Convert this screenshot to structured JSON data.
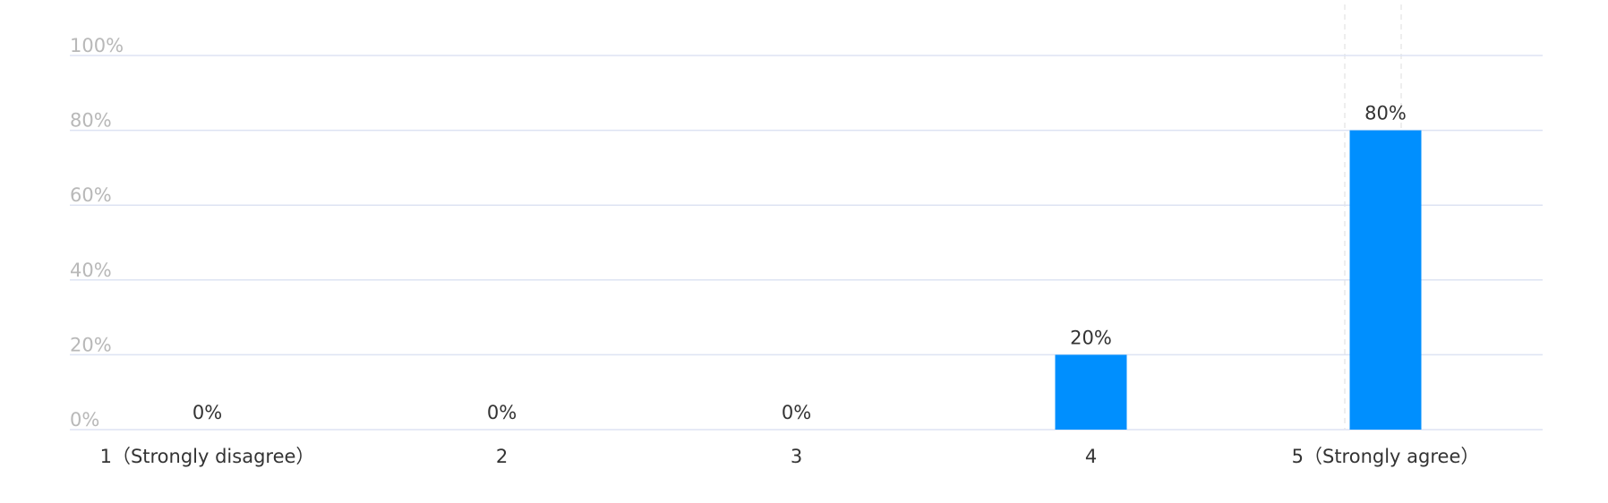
{
  "chart_data": {
    "type": "bar",
    "categories": [
      "1（Strongly disagree）",
      "2",
      "3",
      "4",
      "5（Strongly agree）"
    ],
    "values": [
      0,
      0,
      0,
      20,
      80
    ],
    "value_labels": [
      "0%",
      "0%",
      "0%",
      "20%",
      "80%"
    ],
    "color": "#008ffe",
    "ylim": [
      0,
      100
    ],
    "yticks": [
      {
        "value": 0,
        "label": "0%"
      },
      {
        "value": 20,
        "label": "20%"
      },
      {
        "value": 40,
        "label": "40%"
      },
      {
        "value": 60,
        "label": "60%"
      },
      {
        "value": 80,
        "label": "80%"
      },
      {
        "value": 100,
        "label": "100%"
      }
    ],
    "grid": true
  }
}
